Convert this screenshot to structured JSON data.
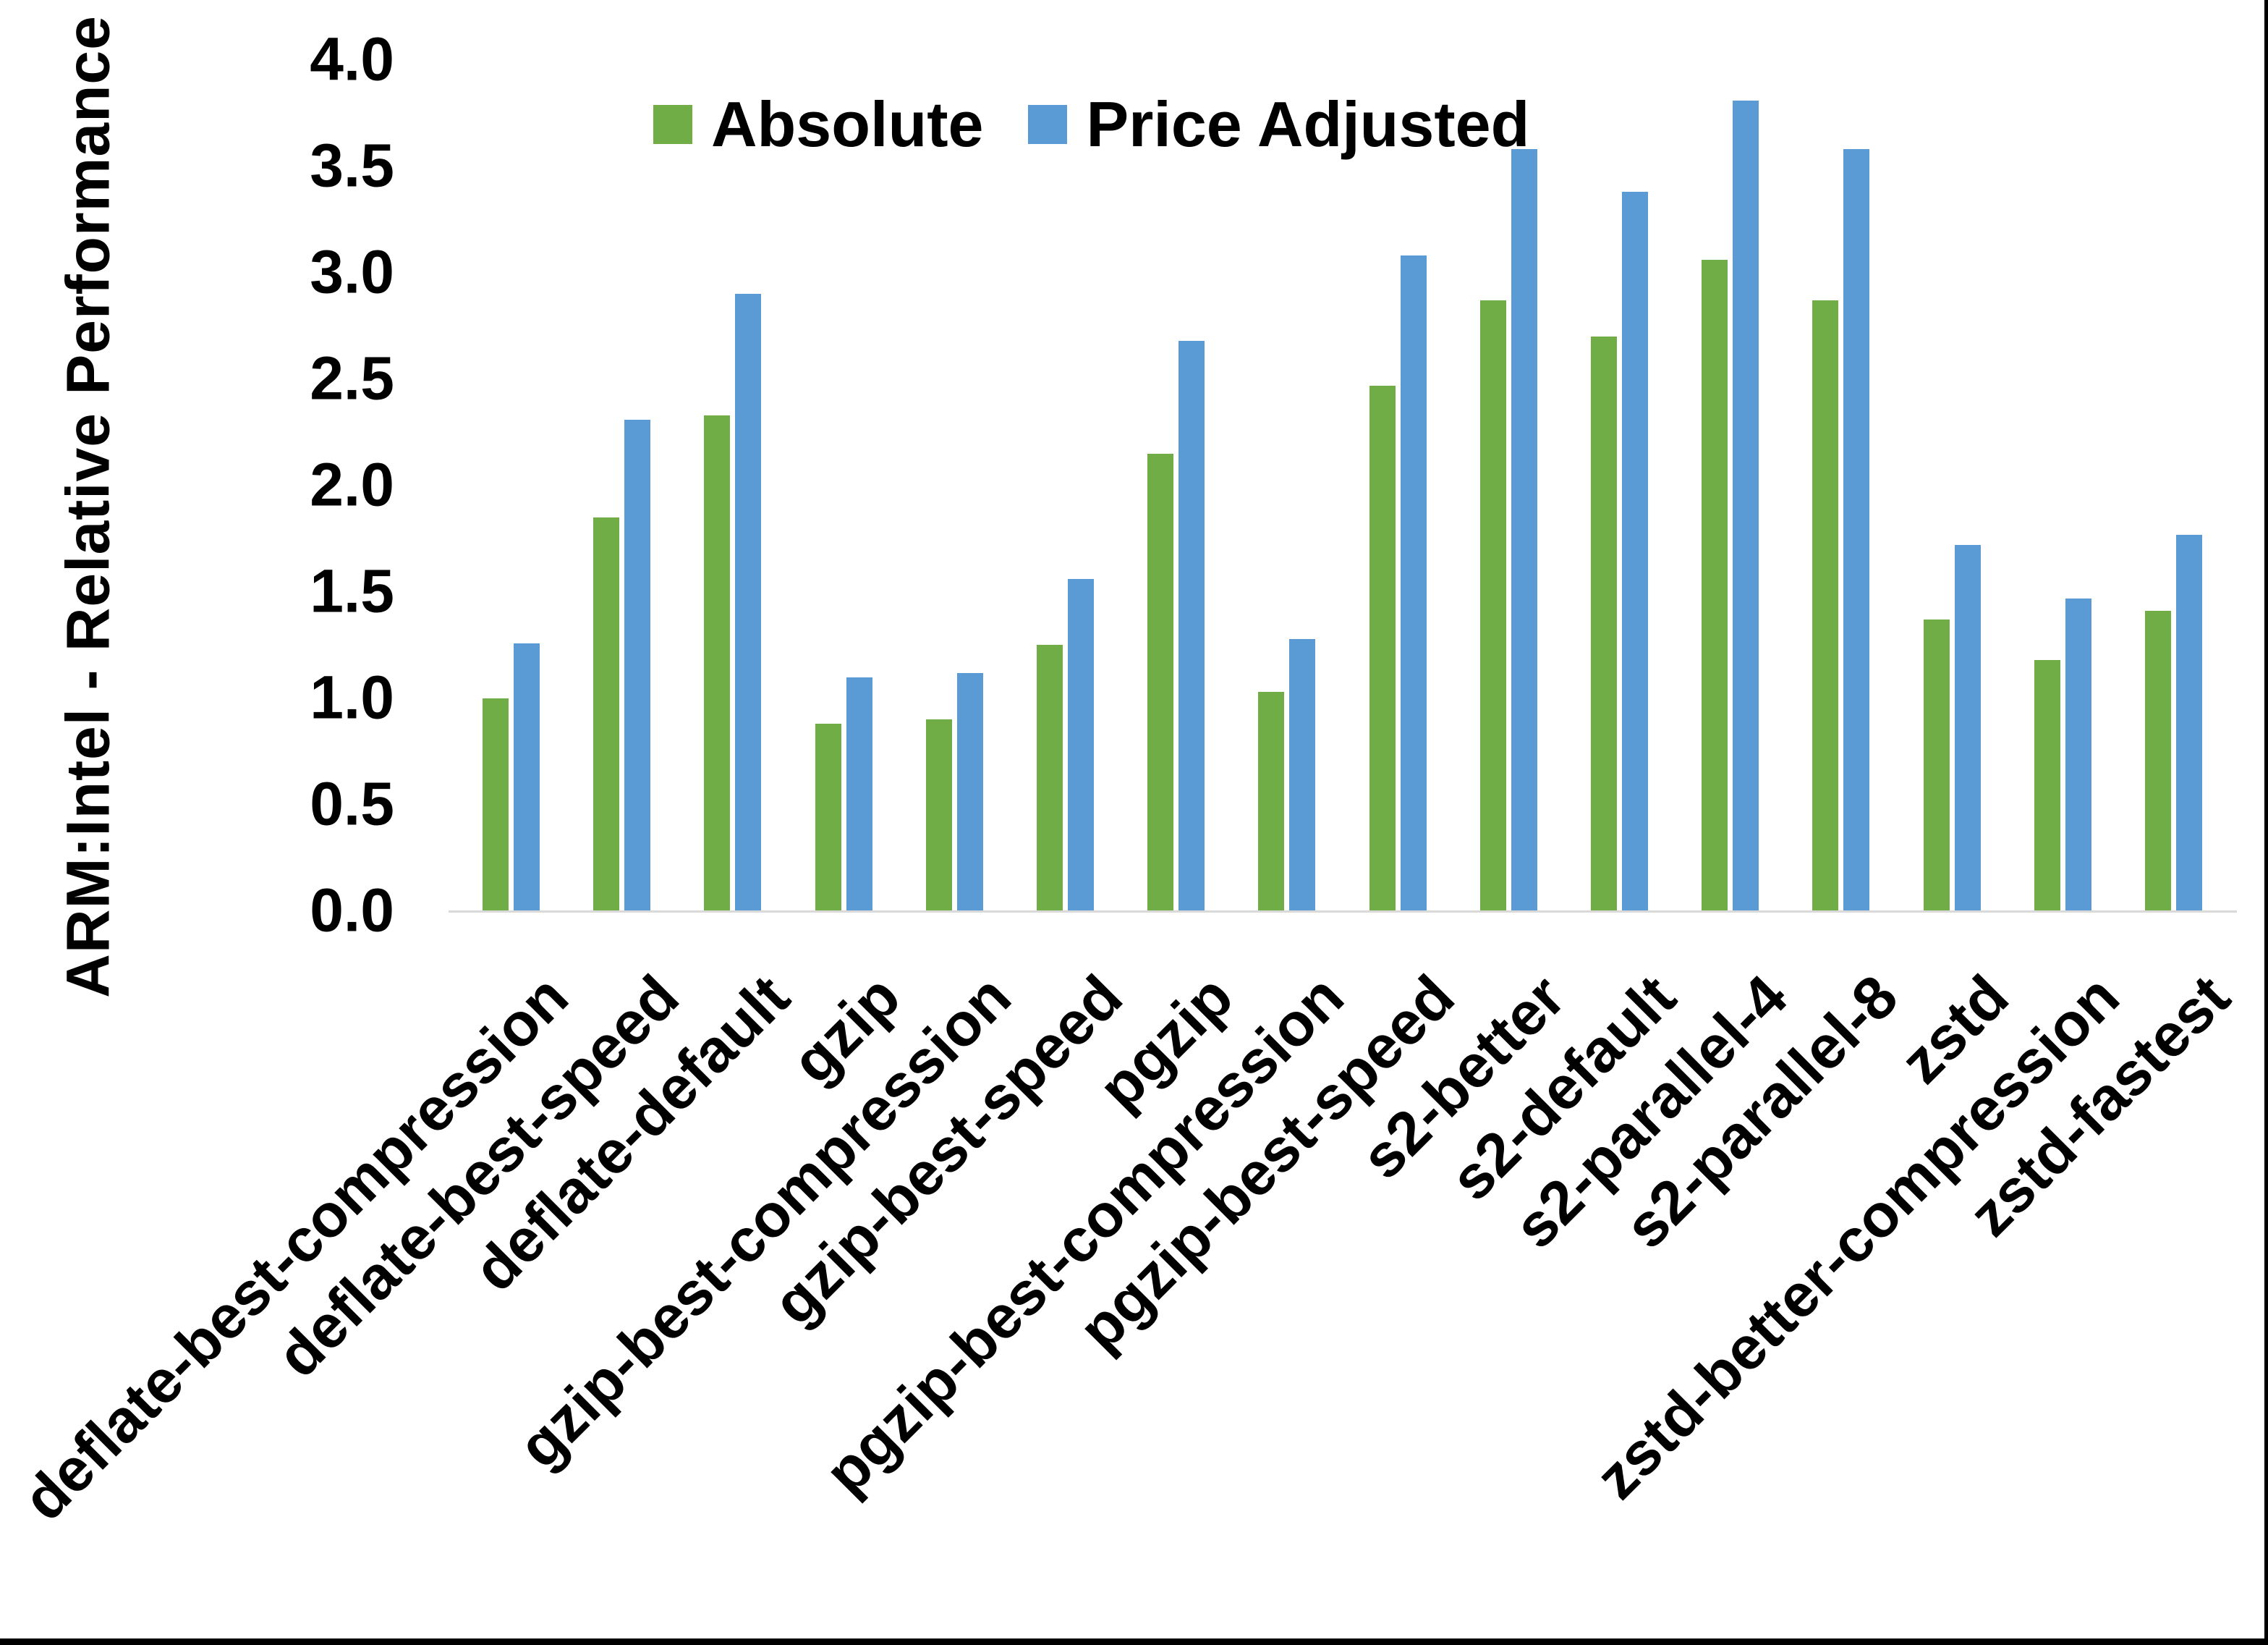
{
  "window": {
    "background": "#FFFFFF",
    "border_color": "#000000"
  },
  "chart_data": {
    "type": "bar",
    "title": "",
    "xlabel": "",
    "ylabel": "ARM:Intel - Relative Performance",
    "ylim": [
      0.0,
      4.0
    ],
    "ytick_step": 0.5,
    "ytick_labels": [
      "4.0",
      "3.5",
      "3.0",
      "2.5",
      "2.0",
      "1.5",
      "1.0",
      "0.5",
      "0.0"
    ],
    "grid": false,
    "legend_position": "top-center",
    "axis_line_color": "#D9D9D9",
    "categories": [
      "deflate-best-compression",
      "deflate-best-speed",
      "deflate-default",
      "gzip",
      "gzip-best-compression",
      "gzip-best-speed",
      "pgzip",
      "pgzip-best-compression",
      "pgzip-best-speed",
      "s2-better",
      "s2-default",
      "s2-parallel-4",
      "s2-parallel-8",
      "zstd",
      "zstd-better-compression",
      "zstd-fastest"
    ],
    "series": [
      {
        "name": "Absolute",
        "color": "#70AD47",
        "values": [
          1.0,
          1.85,
          2.33,
          0.88,
          0.9,
          1.25,
          2.15,
          1.03,
          2.47,
          2.87,
          2.7,
          3.06,
          2.87,
          1.37,
          1.18,
          1.41
        ]
      },
      {
        "name": "Price Adjusted",
        "color": "#5B9BD5",
        "values": [
          1.26,
          2.31,
          2.9,
          1.1,
          1.12,
          1.56,
          2.68,
          1.28,
          3.08,
          3.58,
          3.38,
          3.81,
          3.58,
          1.72,
          1.47,
          1.77
        ]
      }
    ]
  }
}
